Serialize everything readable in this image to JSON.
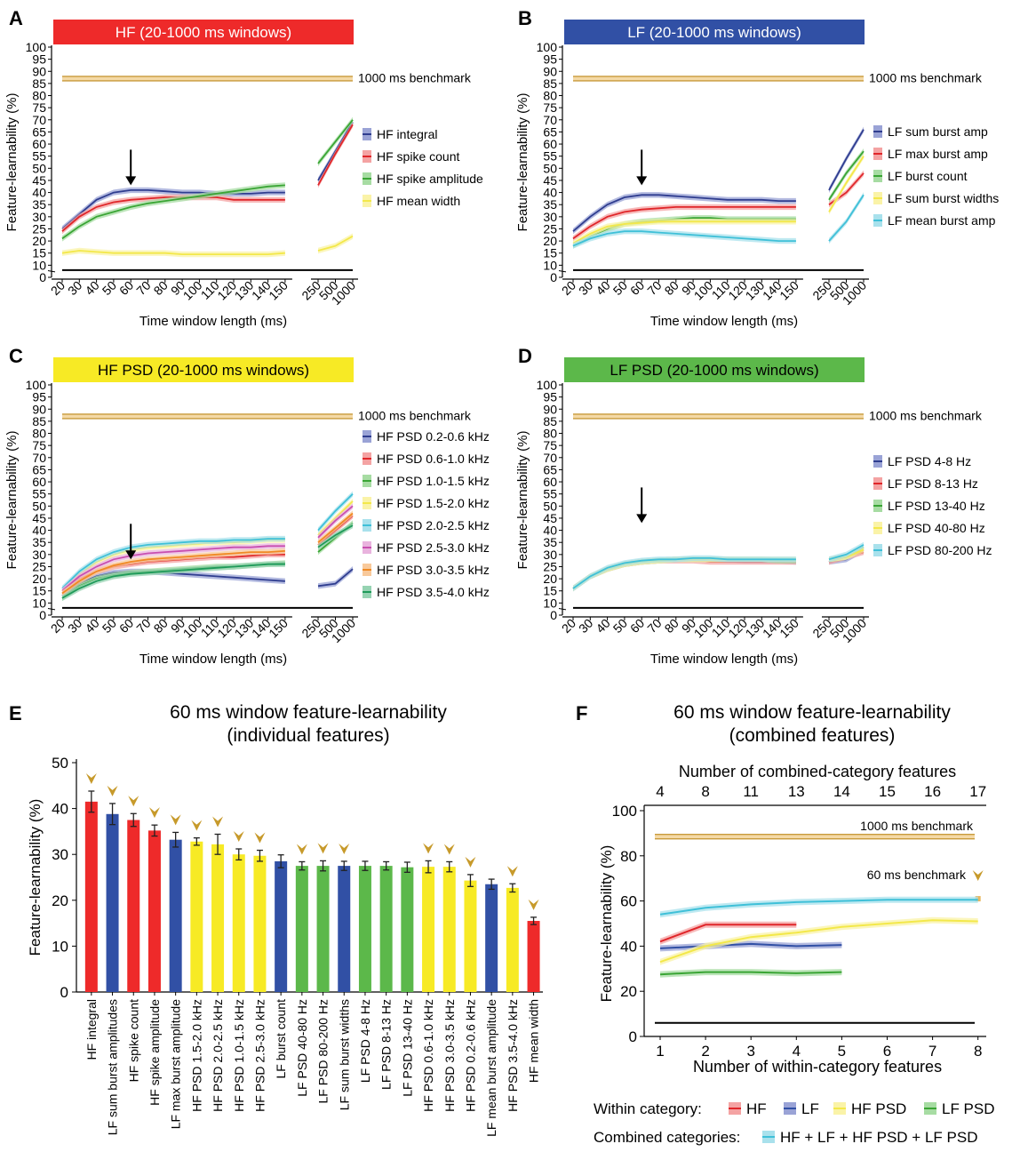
{
  "panels_line": [
    {
      "id": "A",
      "title": "HF (20-1000 ms windows)",
      "title_color": "#ee2a2a",
      "title_text_color": "#ffffff",
      "benchmark_label": "1000 ms benchmark",
      "benchmark_value": 87,
      "chance_value": 6,
      "arrow_at": "60",
      "ylabel": "Feature-learnability (%)",
      "xlabel": "Time window length (ms)",
      "y_ticks": [
        0,
        10,
        15,
        20,
        25,
        30,
        35,
        40,
        45,
        50,
        55,
        60,
        65,
        70,
        75,
        80,
        85,
        90,
        95,
        100
      ],
      "x_ticks_left": [
        "20",
        "30",
        "40",
        "50",
        "60",
        "70",
        "80",
        "90",
        "100",
        "110",
        "120",
        "130",
        "140",
        "150"
      ],
      "x_ticks_right": [
        "250",
        "500",
        "1000"
      ],
      "series": [
        {
          "name": "HF integral",
          "color": "#2f3d8f",
          "band": "#9aa3d6",
          "left": [
            25,
            31,
            37,
            40,
            41,
            41,
            40.5,
            40,
            40,
            39.5,
            39.5,
            39.5,
            40,
            40
          ],
          "right": [
            45,
            57,
            69
          ]
        },
        {
          "name": "HF spike count",
          "color": "#e0262a",
          "band": "#f4a3a3",
          "left": [
            24,
            30,
            34,
            36,
            37,
            37.5,
            38,
            38,
            38,
            38,
            37,
            37,
            37,
            37
          ],
          "right": [
            43,
            56,
            68
          ]
        },
        {
          "name": "HF spike amplitude",
          "color": "#3aa535",
          "band": "#a7dca3",
          "left": [
            21,
            26,
            30,
            32,
            34,
            35.5,
            36.5,
            37.5,
            38.5,
            39.5,
            40.5,
            41.5,
            42.5,
            43
          ],
          "right": [
            52,
            61,
            70
          ]
        },
        {
          "name": "HF mean width",
          "color": "#f3e84a",
          "band": "#faf3a8",
          "left": [
            15,
            16,
            15.5,
            15,
            15,
            15,
            15,
            14.5,
            14.5,
            14.5,
            14.5,
            14.5,
            14.5,
            15
          ],
          "right": [
            16,
            18,
            22
          ]
        }
      ]
    },
    {
      "id": "B",
      "title": "LF (20-1000 ms windows)",
      "title_color": "#3150a5",
      "title_text_color": "#ffffff",
      "benchmark_label": "1000 ms benchmark",
      "benchmark_value": 87,
      "chance_value": 6,
      "arrow_at": "60",
      "ylabel": "Feature-learnability (%)",
      "xlabel": "Time window length (ms)",
      "y_ticks": [
        0,
        10,
        15,
        20,
        25,
        30,
        35,
        40,
        45,
        50,
        55,
        60,
        65,
        70,
        75,
        80,
        85,
        90,
        95,
        100
      ],
      "x_ticks_left": [
        "20",
        "30",
        "40",
        "50",
        "60",
        "70",
        "80",
        "90",
        "100",
        "110",
        "120",
        "130",
        "140",
        "150"
      ],
      "x_ticks_right": [
        "250",
        "500",
        "1000"
      ],
      "series": [
        {
          "name": "LF sum burst amp",
          "color": "#2f3d8f",
          "band": "#9aa3d6",
          "left": [
            24,
            30,
            35,
            38,
            39,
            39,
            38.5,
            38,
            37.5,
            37,
            37,
            37,
            36.5,
            36.5
          ],
          "right": [
            41,
            54,
            66
          ]
        },
        {
          "name": "LF max burst amp",
          "color": "#e0262a",
          "band": "#f4a3a3",
          "left": [
            21,
            26,
            30,
            32,
            33,
            33.5,
            34,
            34,
            34,
            34,
            34,
            34,
            34,
            34
          ],
          "right": [
            35,
            40,
            48
          ]
        },
        {
          "name": "LF burst count",
          "color": "#3aa535",
          "band": "#a7dca3",
          "left": [
            18,
            22,
            25,
            27,
            28,
            28.5,
            29,
            29.5,
            29.5,
            29,
            29,
            29,
            29,
            29
          ],
          "right": [
            37,
            48,
            57
          ]
        },
        {
          "name": "LF sum burst widths",
          "color": "#f3e84a",
          "band": "#faf3a8",
          "left": [
            19,
            23,
            26,
            27,
            27.5,
            28,
            28,
            28,
            28,
            28,
            28,
            28,
            28,
            28
          ],
          "right": [
            32,
            44,
            55
          ]
        },
        {
          "name": "LF mean burst amp",
          "color": "#3fc0d8",
          "band": "#a9e1ec",
          "left": [
            18,
            21,
            23,
            24,
            24,
            23.5,
            23,
            22.5,
            22,
            21.5,
            21,
            20.5,
            20,
            20
          ],
          "right": [
            20,
            28,
            39
          ]
        }
      ]
    },
    {
      "id": "C",
      "title": "HF PSD (20-1000 ms windows)",
      "title_color": "#f7ea25",
      "title_text_color": "#000000",
      "benchmark_label": "1000 ms benchmark",
      "benchmark_value": 87,
      "chance_value": 6,
      "arrow_at": "60",
      "ylabel": "Feature-learnability (%)",
      "xlabel": "Time window length (ms)",
      "y_ticks": [
        0,
        10,
        15,
        20,
        25,
        30,
        35,
        40,
        45,
        50,
        55,
        60,
        65,
        70,
        75,
        80,
        85,
        90,
        95,
        100
      ],
      "x_ticks_left": [
        "20",
        "30",
        "40",
        "50",
        "60",
        "70",
        "80",
        "90",
        "100",
        "110",
        "120",
        "130",
        "140",
        "150"
      ],
      "x_ticks_right": [
        "250",
        "500",
        "1000"
      ],
      "series": [
        {
          "name": "HF PSD 0.2-0.6 kHz",
          "color": "#2f3d8f",
          "band": "#9aa3d6",
          "left": [
            13,
            18,
            21,
            22.5,
            23,
            23,
            22.5,
            22,
            21.5,
            21,
            20.5,
            20,
            19.5,
            19
          ],
          "right": [
            17,
            18,
            24
          ]
        },
        {
          "name": "HF PSD 0.6-1.0 kHz",
          "color": "#e0262a",
          "band": "#f4a3a3",
          "left": [
            14,
            20,
            23,
            25,
            26,
            27,
            27.5,
            28,
            28.5,
            29,
            29,
            29.5,
            30,
            30
          ],
          "right": [
            34,
            40,
            46
          ]
        },
        {
          "name": "HF PSD 1.0-1.5 kHz",
          "color": "#3aa535",
          "band": "#a7dca3",
          "left": [
            12,
            17,
            20,
            21.5,
            22.5,
            23,
            23.5,
            24,
            24.5,
            25,
            25,
            25.5,
            26,
            26.5
          ],
          "right": [
            31,
            37,
            43
          ]
        },
        {
          "name": "HF PSD 1.5-2.0 kHz",
          "color": "#f3e84a",
          "band": "#faf3a8",
          "left": [
            15,
            22,
            27,
            30,
            32,
            33,
            33.5,
            34,
            34.5,
            35,
            35,
            35.5,
            36,
            36
          ],
          "right": [
            38,
            45,
            52
          ]
        },
        {
          "name": "HF PSD 2.0-2.5 kHz",
          "color": "#3fc0d8",
          "band": "#a9e1ec",
          "left": [
            16,
            23,
            28,
            31,
            33,
            34,
            34.5,
            35,
            35.5,
            35.5,
            36,
            36,
            36.5,
            36.5
          ],
          "right": [
            40,
            48,
            55
          ]
        },
        {
          "name": "HF PSD 2.5-3.0 kHz",
          "color": "#c84fb0",
          "band": "#e9b3de",
          "left": [
            15,
            21,
            25,
            28,
            29.5,
            30.5,
            31,
            31.5,
            32,
            32.5,
            33,
            33,
            33.5,
            33.5
          ],
          "right": [
            37,
            44,
            50
          ]
        },
        {
          "name": "HF PSD 3.0-3.5 kHz",
          "color": "#f08a24",
          "band": "#f8c99b",
          "left": [
            14,
            19,
            23,
            25.5,
            27,
            28,
            28.5,
            29,
            29.5,
            30,
            30.5,
            31,
            31,
            31.5
          ],
          "right": [
            35,
            41,
            47
          ]
        },
        {
          "name": "HF PSD 3.5-4.0 kHz",
          "color": "#1f9a5a",
          "band": "#96d3b2",
          "left": [
            12,
            16,
            19,
            21,
            22,
            22.5,
            23,
            23.5,
            24,
            24.5,
            25,
            25.5,
            26,
            26
          ],
          "right": [
            33,
            38,
            42
          ]
        }
      ]
    },
    {
      "id": "D",
      "title": "LF PSD (20-1000 ms windows)",
      "title_color": "#5cb84a",
      "title_text_color": "#000000",
      "benchmark_label": "1000 ms benchmark",
      "benchmark_value": 87,
      "chance_value": 6,
      "arrow_at": "60",
      "ylabel": "Feature-learnability (%)",
      "xlabel": "Time window length (ms)",
      "y_ticks": [
        0,
        10,
        15,
        20,
        25,
        30,
        35,
        40,
        45,
        50,
        55,
        60,
        65,
        70,
        75,
        80,
        85,
        90,
        95,
        100
      ],
      "x_ticks_left": [
        "20",
        "30",
        "40",
        "50",
        "60",
        "70",
        "80",
        "90",
        "100",
        "110",
        "120",
        "130",
        "140",
        "150"
      ],
      "x_ticks_right": [
        "250",
        "500",
        "1000"
      ],
      "series": [
        {
          "name": "LF PSD 4-8 Hz",
          "color": "#2f3d8f",
          "band": "#9aa3d6",
          "left": [
            16,
            21,
            24,
            26,
            27,
            27.5,
            28,
            28,
            28,
            28,
            27.5,
            27.5,
            27.5,
            27
          ],
          "right": [
            27,
            28,
            32
          ]
        },
        {
          "name": "LF PSD 8-13 Hz",
          "color": "#e0262a",
          "band": "#f4a3a3",
          "left": [
            16,
            21,
            24,
            26,
            27,
            27.5,
            27.5,
            27.5,
            27,
            27,
            27,
            27,
            27,
            27
          ],
          "right": [
            27,
            29,
            31
          ]
        },
        {
          "name": "LF PSD 13-40 Hz",
          "color": "#3aa535",
          "band": "#a7dca3",
          "left": [
            16,
            21,
            24,
            26,
            27,
            27.5,
            28,
            28,
            28,
            28,
            28,
            28,
            27.5,
            27.5
          ],
          "right": [
            28,
            29,
            33
          ]
        },
        {
          "name": "LF PSD 40-80 Hz",
          "color": "#f3e84a",
          "band": "#faf3a8",
          "left": [
            16,
            21,
            24,
            26,
            27,
            27.5,
            28,
            28,
            28,
            28,
            28,
            28,
            28,
            28
          ],
          "right": [
            28,
            29,
            32
          ]
        },
        {
          "name": "LF PSD 80-200 Hz",
          "color": "#3fc0d8",
          "band": "#a9e1ec",
          "left": [
            16,
            21,
            24.5,
            26.5,
            27.5,
            28,
            28,
            28.5,
            28.5,
            28,
            28,
            28,
            28,
            28
          ],
          "right": [
            28,
            30,
            34
          ]
        }
      ]
    }
  ],
  "panel_e": {
    "id": "E",
    "title_line1": "60 ms window feature-learnability",
    "title_line2": "(individual features)",
    "ylabel": "Feature-learnability (%)",
    "y_ticks": [
      0,
      10,
      20,
      30,
      40,
      50
    ],
    "chart_data": {
      "type": "bar",
      "ylim": [
        0,
        50
      ],
      "categories": [
        "HF integral",
        "LF sum burst amplitudes",
        "HF spike count",
        "HF spike amplitude",
        "LF max burst amplitude",
        "HF PSD 1.5-2.0 kHz",
        "HF PSD 2.0-2.5 kHz",
        "HF PSD 1.0-1.5 kHz",
        "HF PSD 2.5-3.0 kHz",
        "LF burst count",
        "LF PSD 40-80 Hz",
        "LF PSD 80-200 Hz",
        "LF sum burst widths",
        "LF PSD 4-8 Hz",
        "LF PSD 8-13 Hz",
        "LF PSD 13-40 Hz",
        "HF PSD 0.6-1.0 kHz",
        "HF PSD 3.0-3.5 kHz",
        "HF PSD 0.2-0.6 kHz",
        "LF mean burst amplitude",
        "HF PSD 3.5-4.0 kHz",
        "HF mean width"
      ],
      "values": [
        41.5,
        38.8,
        37.5,
        35.2,
        33.2,
        32.8,
        32.2,
        30.0,
        29.7,
        28.5,
        27.5,
        27.5,
        27.5,
        27.5,
        27.5,
        27.2,
        27.3,
        27.3,
        24.3,
        23.5,
        22.7,
        15.5
      ],
      "errors": [
        2.3,
        2.3,
        1.4,
        1.2,
        1.6,
        0.8,
        2.2,
        1.2,
        1.2,
        1.4,
        0.9,
        1.1,
        1.0,
        1.0,
        0.9,
        1.1,
        1.3,
        1.1,
        1.3,
        1.1,
        0.9,
        0.8
      ],
      "colors": [
        "#ee2a2a",
        "#3150a5",
        "#ee2a2a",
        "#ee2a2a",
        "#3150a5",
        "#f7ea25",
        "#f7ea25",
        "#f7ea25",
        "#f7ea25",
        "#3150a5",
        "#5cb84a",
        "#5cb84a",
        "#3150a5",
        "#5cb84a",
        "#5cb84a",
        "#5cb84a",
        "#f7ea25",
        "#f7ea25",
        "#f7ea25",
        "#3150a5",
        "#f7ea25",
        "#ee2a2a"
      ],
      "marked": [
        true,
        true,
        true,
        true,
        true,
        true,
        true,
        true,
        true,
        false,
        true,
        true,
        true,
        false,
        false,
        false,
        true,
        true,
        true,
        false,
        true,
        true
      ]
    }
  },
  "panel_f": {
    "id": "F",
    "title_line1": "60 ms window feature-learnability",
    "title_line2": "(combined features)",
    "ylabel": "Feature-learnability (%)",
    "xlabel_bottom": "Number of within-category features",
    "xlabel_top": "Number  of combined-category features",
    "x_ticks_bottom": [
      "1",
      "2",
      "3",
      "4",
      "5",
      "6",
      "7",
      "8"
    ],
    "x_ticks_top": [
      "4",
      "8",
      "11",
      "13",
      "14",
      "15",
      "16",
      "17"
    ],
    "y_ticks": [
      0,
      20,
      40,
      60,
      80,
      100
    ],
    "benchmark_label": "1000 ms benchmark",
    "benchmark_value": 88.5,
    "benchmark60_label": "60 ms benchmark",
    "benchmark60_value": 61,
    "chance_value": 6,
    "chart_data": {
      "type": "line",
      "ylim": [
        0,
        100
      ],
      "series": [
        {
          "name": "HF",
          "color": "#e0262a",
          "band": "#f4a3a3",
          "x": [
            1,
            2,
            3,
            4
          ],
          "values": [
            42,
            49.5,
            49.5,
            49.5
          ]
        },
        {
          "name": "LF",
          "color": "#3150a5",
          "band": "#9aa3d6",
          "x": [
            1,
            2,
            3,
            4,
            5
          ],
          "values": [
            39,
            40,
            41,
            40,
            40.5
          ]
        },
        {
          "name": "HF PSD",
          "color": "#f3e84a",
          "band": "#faf3a8",
          "x": [
            1,
            2,
            3,
            4,
            5,
            6,
            7,
            8
          ],
          "values": [
            33,
            40,
            44,
            46,
            48.5,
            50,
            51.5,
            51
          ]
        },
        {
          "name": "LF PSD",
          "color": "#3aa535",
          "band": "#a7dca3",
          "x": [
            1,
            2,
            3,
            4,
            5
          ],
          "values": [
            27.5,
            28.5,
            28.5,
            28,
            28.5
          ]
        },
        {
          "name": "HF + LF + HF PSD + LF PSD",
          "color": "#3fc0d8",
          "band": "#a9e1ec",
          "x": [
            1,
            2,
            3,
            4,
            5,
            6,
            7,
            8
          ],
          "values": [
            54,
            57,
            58.5,
            59.5,
            60,
            60.5,
            60.5,
            60.5
          ]
        }
      ]
    },
    "legend_within_label": "Within category:",
    "legend_within": [
      "HF",
      "LF",
      "HF PSD",
      "LF PSD"
    ],
    "legend_combined_label": "Combined categories:",
    "legend_combined": [
      "HF + LF + HF PSD + LF PSD"
    ]
  }
}
